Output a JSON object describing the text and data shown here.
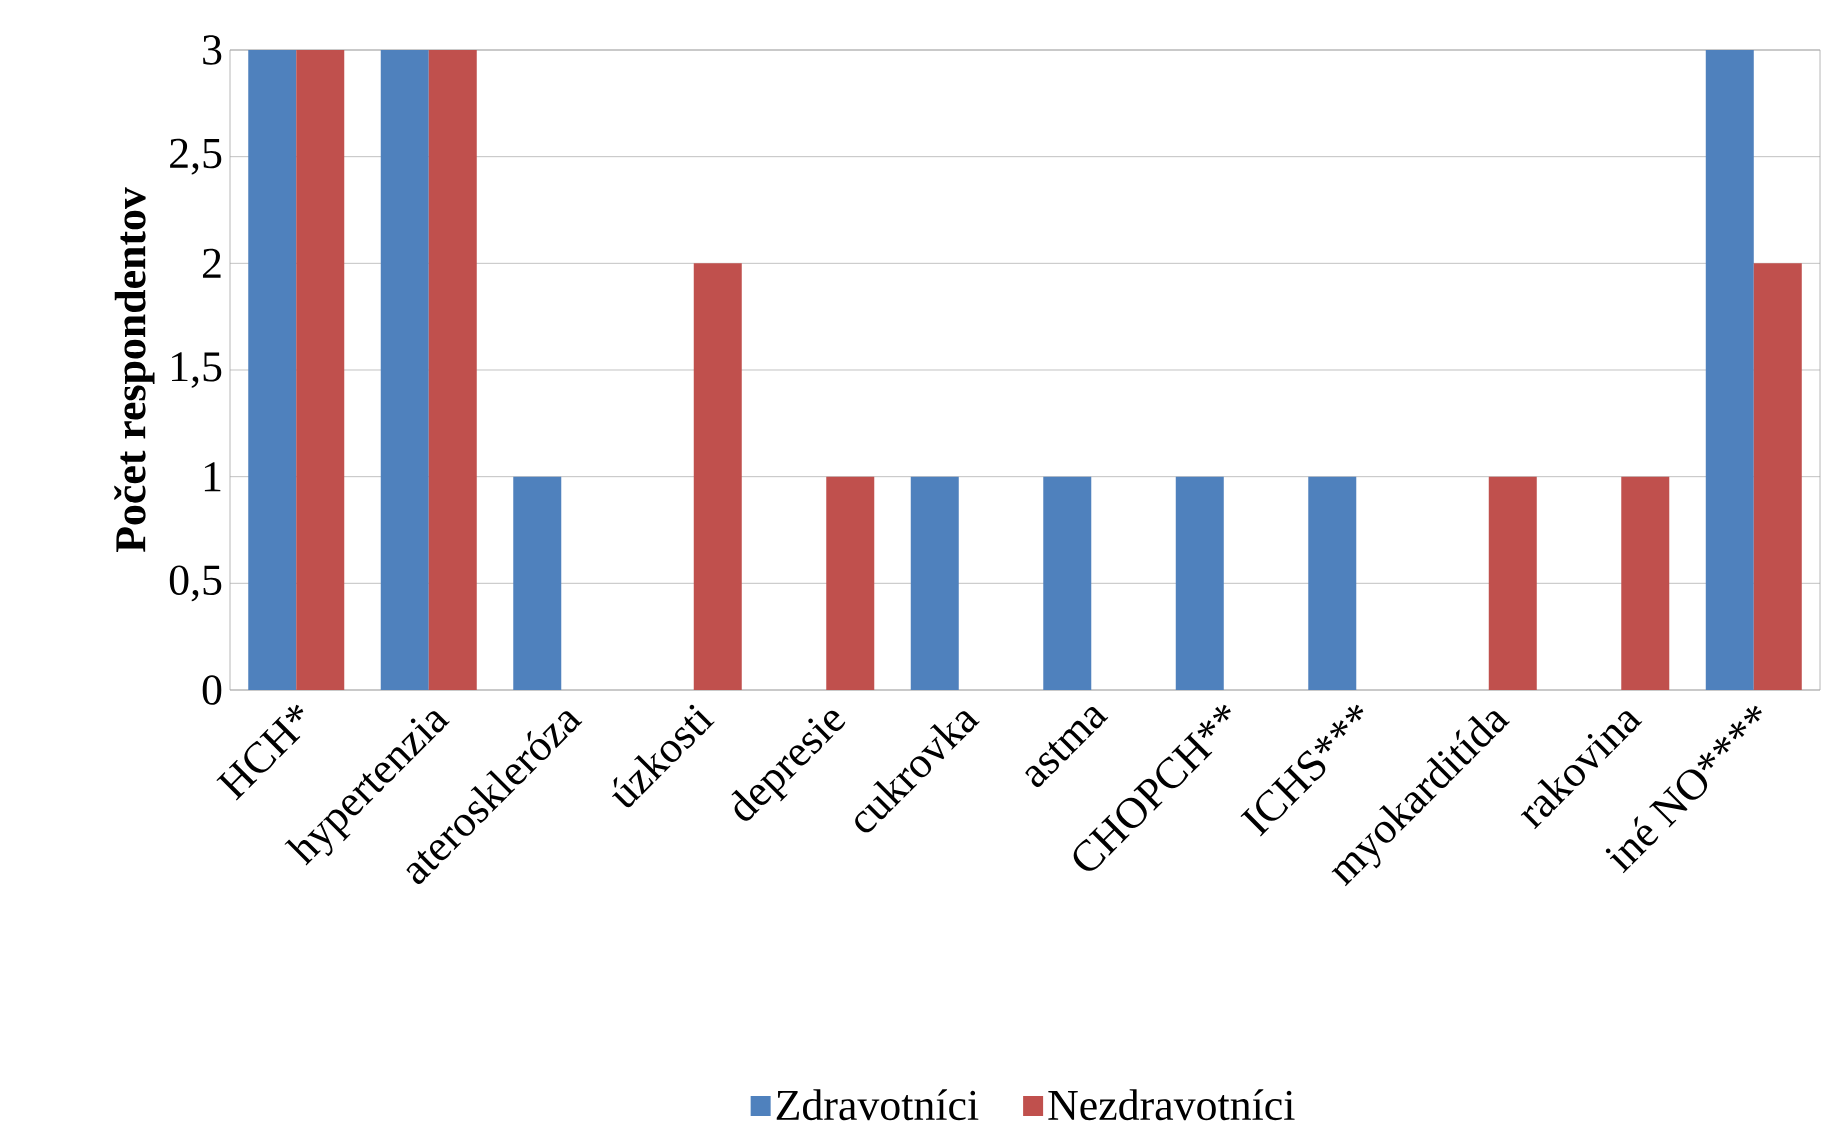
{
  "chart_data": {
    "type": "bar",
    "ylabel": "Počet respondentov",
    "categories": [
      "HCH*",
      "hypertenzia",
      "ateroskleróza",
      "úzkosti",
      "depresie",
      "cukrovka",
      "astma",
      "CHOPCH**",
      "ICHS***",
      "myokarditída",
      "rakovina",
      "iné NO****"
    ],
    "series": [
      {
        "name": "Zdravotníci",
        "color": "#4f81bd",
        "values": [
          3,
          3,
          1,
          0,
          0,
          1,
          1,
          1,
          1,
          0,
          0,
          3
        ]
      },
      {
        "name": "Nezdravotníci",
        "color": "#c0504d",
        "values": [
          3,
          3,
          0,
          2,
          1,
          0,
          0,
          0,
          0,
          1,
          1,
          2
        ]
      }
    ],
    "ylim": [
      0,
      3
    ],
    "yticks": [
      {
        "value": 0,
        "label": "0"
      },
      {
        "value": 0.5,
        "label": "0,5"
      },
      {
        "value": 1,
        "label": "1"
      },
      {
        "value": 1.5,
        "label": "1,5"
      },
      {
        "value": 2,
        "label": "2"
      },
      {
        "value": 2.5,
        "label": "2,5"
      },
      {
        "value": 3,
        "label": "3"
      }
    ],
    "grid": "y",
    "legend": "bottom"
  }
}
